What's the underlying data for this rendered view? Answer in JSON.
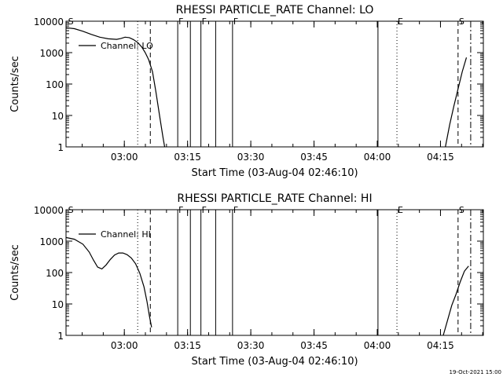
{
  "footer_timestamp": "19-Oct-2021 15:00",
  "chart_data": [
    {
      "type": "line",
      "title": "RHESSI PARTICLE_RATE Channel: LO",
      "xlabel": "Start Time (03-Aug-04 02:46:10)",
      "ylabel": "Counts/sec",
      "yscale": "log",
      "ylim": [
        1,
        10000
      ],
      "xlim_minutes": [
        0,
        99
      ],
      "x_tick_labels": [
        "03:00",
        "03:15",
        "03:30",
        "03:45",
        "04:00",
        "04:15"
      ],
      "y_tick_labels": [
        "1",
        "10",
        "100",
        "1000",
        "10000"
      ],
      "legend": "Channel: LO",
      "series": [
        {
          "name": "Channel: LO",
          "segments": [
            [
              [
                0,
                6200
              ],
              [
                2,
                5800
              ],
              [
                4,
                4800
              ],
              [
                6,
                3800
              ],
              [
                8,
                3100
              ],
              [
                10,
                2750
              ],
              [
                12,
                2650
              ],
              [
                13,
                2800
              ],
              [
                14,
                3100
              ],
              [
                15,
                3000
              ],
              [
                16,
                2600
              ],
              [
                17,
                2100
              ],
              [
                18,
                1500
              ],
              [
                18.8,
                1000
              ],
              [
                19.6,
                600
              ],
              [
                20.5,
                250
              ],
              [
                21.3,
                60
              ],
              [
                22.3,
                8
              ],
              [
                23,
                2
              ],
              [
                23.4,
                1
              ]
            ],
            [
              [
                90,
                1
              ],
              [
                91,
                5
              ],
              [
                92,
                20
              ],
              [
                93,
                70
              ],
              [
                94,
                250
              ],
              [
                95,
                700
              ]
            ]
          ]
        }
      ],
      "markers": [
        {
          "label": "S",
          "minute": 0.5,
          "style": "none"
        },
        {
          "label": "",
          "minute": 17,
          "style": "dotted"
        },
        {
          "label": "",
          "minute": 20,
          "style": "dashed"
        },
        {
          "label": "F",
          "minute": 26.5,
          "style": "solid"
        },
        {
          "label": "",
          "minute": 29.5,
          "style": "solid"
        },
        {
          "label": "F",
          "minute": 32,
          "style": "solid"
        },
        {
          "label": "",
          "minute": 35.5,
          "style": "solid"
        },
        {
          "label": "F",
          "minute": 39.5,
          "style": "solid"
        },
        {
          "label": "",
          "minute": 74,
          "style": "solid"
        },
        {
          "label": "E",
          "minute": 78.5,
          "style": "dotted"
        },
        {
          "label": "S",
          "minute": 93,
          "style": "dashed"
        },
        {
          "label": "",
          "minute": 96,
          "style": "dashdot"
        }
      ]
    },
    {
      "type": "line",
      "title": "RHESSI PARTICLE_RATE Channel: HI",
      "xlabel": "Start Time (03-Aug-04 02:46:10)",
      "ylabel": "Counts/sec",
      "yscale": "log",
      "ylim": [
        1,
        10000
      ],
      "xlim_minutes": [
        0,
        99
      ],
      "x_tick_labels": [
        "03:00",
        "03:15",
        "03:30",
        "03:45",
        "04:00",
        "04:15"
      ],
      "y_tick_labels": [
        "1",
        "10",
        "100",
        "1000",
        "10000"
      ],
      "legend": "Channel: HI",
      "series": [
        {
          "name": "Channel: HI",
          "segments": [
            [
              [
                0,
                1300
              ],
              [
                2,
                1150
              ],
              [
                4,
                800
              ],
              [
                5.5,
                450
              ],
              [
                6.5,
                250
              ],
              [
                7.5,
                150
              ],
              [
                8.5,
                130
              ],
              [
                9.5,
                175
              ],
              [
                10.5,
                260
              ],
              [
                11.5,
                360
              ],
              [
                12.5,
                420
              ],
              [
                13.5,
                420
              ],
              [
                14.5,
                370
              ],
              [
                15.5,
                290
              ],
              [
                16.5,
                190
              ],
              [
                17.5,
                95
              ],
              [
                18.5,
                35
              ],
              [
                19.2,
                12
              ],
              [
                19.8,
                4
              ],
              [
                20.3,
                1.8
              ]
            ],
            [
              [
                89.5,
                1
              ],
              [
                90.5,
                3
              ],
              [
                91.5,
                9
              ],
              [
                92.5,
                20
              ],
              [
                93.5,
                50
              ],
              [
                94.5,
                110
              ],
              [
                95.5,
                160
              ]
            ]
          ]
        }
      ],
      "markers": [
        {
          "label": "S",
          "minute": 0.5,
          "style": "none"
        },
        {
          "label": "",
          "minute": 17,
          "style": "dotted"
        },
        {
          "label": "",
          "minute": 20,
          "style": "dashed"
        },
        {
          "label": "F",
          "minute": 26.5,
          "style": "solid"
        },
        {
          "label": "",
          "minute": 29.5,
          "style": "solid"
        },
        {
          "label": "F",
          "minute": 32,
          "style": "solid"
        },
        {
          "label": "",
          "minute": 35.5,
          "style": "solid"
        },
        {
          "label": "F",
          "minute": 39.5,
          "style": "solid"
        },
        {
          "label": "",
          "minute": 74,
          "style": "solid"
        },
        {
          "label": "E",
          "minute": 78.5,
          "style": "dotted"
        },
        {
          "label": "S",
          "minute": 93,
          "style": "dashed"
        },
        {
          "label": "",
          "minute": 96,
          "style": "dashdot"
        }
      ]
    }
  ]
}
